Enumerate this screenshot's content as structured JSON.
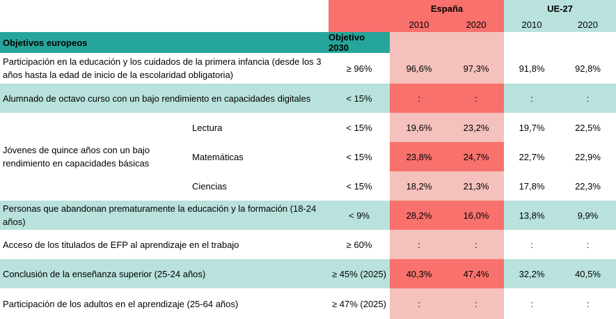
{
  "header": {
    "espana": "España",
    "ue27": "UE-27",
    "years": [
      "2010",
      "2020",
      "2010",
      "2020"
    ],
    "col_objectives": "Objetivos europeos",
    "col_target": "Objetivo 2030"
  },
  "rows": [
    {
      "label": "Participación en la educación y los cuidados de la primera infancia (desde los 3 años hasta la edad de inicio de la escolaridad obligatoria)",
      "target": "≥ 96%",
      "es2010": "96,6%",
      "es2020": "97,3%",
      "eu2010": "91,8%",
      "eu2020": "92,8%"
    },
    {
      "label": "Alumnado de octavo curso con un bajo rendimiento en capacidades digitales",
      "target": "< 15%",
      "es2010": ":",
      "es2020": ":",
      "eu2010": ":",
      "eu2020": ":"
    },
    {
      "group_label": "Jóvenes de quince años con un bajo rendimiento en capacidades básicas",
      "subrows": [
        {
          "sub": "Lectura",
          "target": "< 15%",
          "es2010": "19,6%",
          "es2020": "23,2%",
          "eu2010": "19,7%",
          "eu2020": "22,5%"
        },
        {
          "sub": "Matemáticas",
          "target": "< 15%",
          "es2010": "23,8%",
          "es2020": "24,7%",
          "eu2010": "22,7%",
          "eu2020": "22,9%"
        },
        {
          "sub": "Ciencias",
          "target": "< 15%",
          "es2010": "18,2%",
          "es2020": "21,3%",
          "eu2010": "17,8%",
          "eu2020": "22,3%"
        }
      ]
    },
    {
      "label": "Personas que abandonan prematuramente la educación y la formación (18-24 años)",
      "target": "< 9%",
      "es2010": "28,2%",
      "es2020": "16,0%",
      "eu2010": "13,8%",
      "eu2020": "9,9%"
    },
    {
      "label": "Acceso de los titulados de EFP al aprendizaje en el trabajo",
      "target": "≥ 60%",
      "es2010": ":",
      "es2020": ":",
      "eu2010": ":",
      "eu2020": ":"
    },
    {
      "label": "Conclusión de la enseñanza superior (25-24 años)",
      "target": "≥ 45% (2025)",
      "es2010": "40,3%",
      "es2020": "47,4%",
      "eu2010": "32,2%",
      "eu2020": "40,5%"
    },
    {
      "label": "Participación de los adultos en el aprendizaje (25-64 años)",
      "target": "≥ 47% (2025)",
      "es2010": ":",
      "es2020": ":",
      "eu2010": ":",
      "eu2020": ":"
    }
  ],
  "colors": {
    "header_teal": "#26a69a",
    "row_teal": "#b9e2dd",
    "espana_light": "#f4c1bc",
    "espana_dark": "#f8716c"
  }
}
